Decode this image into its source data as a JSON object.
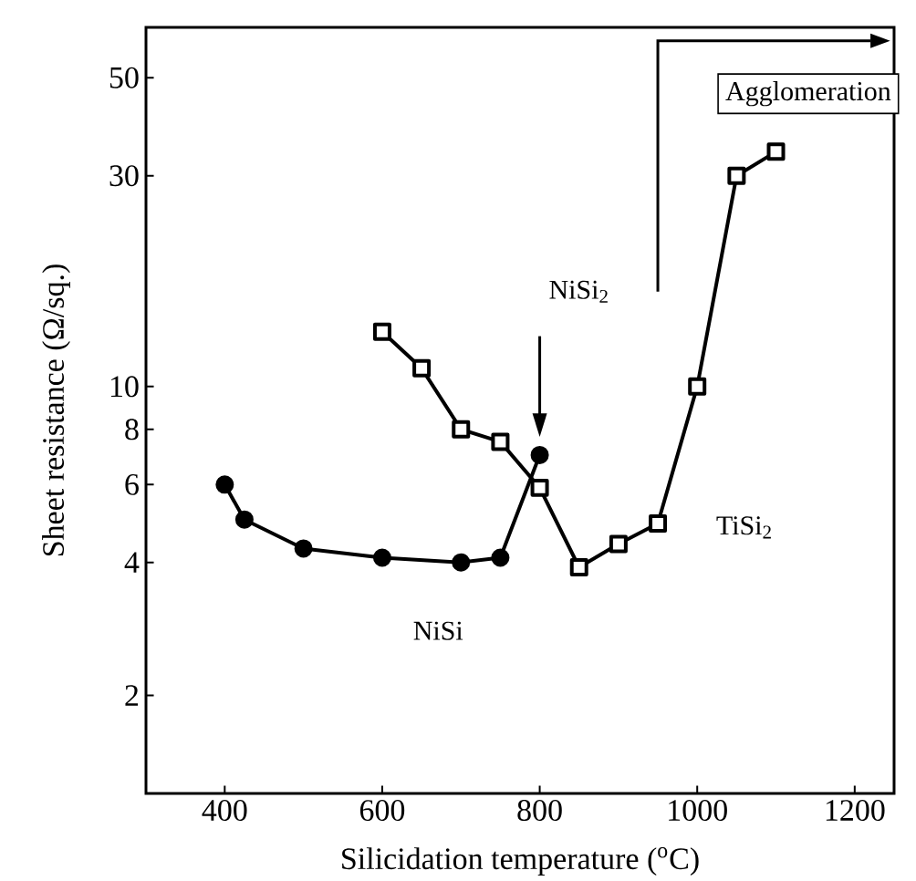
{
  "chart_data": {
    "type": "line",
    "xlabel": "Silicidation temperature  ($^{o}$C)",
    "ylabel": "Sheet resistance  (Ω/sq.)",
    "xlim": [
      300,
      1250
    ],
    "ylim": [
      1.2,
      65
    ],
    "log": "y",
    "xticks": [
      400,
      600,
      800,
      1000,
      1200
    ],
    "yticks": [
      2,
      4,
      6,
      8,
      10,
      30,
      50
    ],
    "grid": false,
    "legend": false,
    "series": [
      {
        "name": "NiSi",
        "color": "#000000",
        "marker": "circle",
        "x": [
          400,
          425,
          500,
          600,
          700,
          750,
          800
        ],
        "values": [
          6,
          5,
          4.3,
          4.1,
          4.0,
          4.1,
          7.0
        ]
      },
      {
        "name": "TiSi$_{2}$",
        "color": "#000000",
        "marker": "square",
        "x": [
          600,
          650,
          700,
          750,
          800,
          850,
          900,
          950,
          1000,
          1050,
          1100
        ],
        "values": [
          13.3,
          11,
          8,
          7.5,
          5.9,
          3.9,
          4.4,
          4.9,
          10,
          30,
          34
        ]
      }
    ],
    "annotations": [
      "NiSi$_{2}$",
      "Agglomeration"
    ]
  }
}
